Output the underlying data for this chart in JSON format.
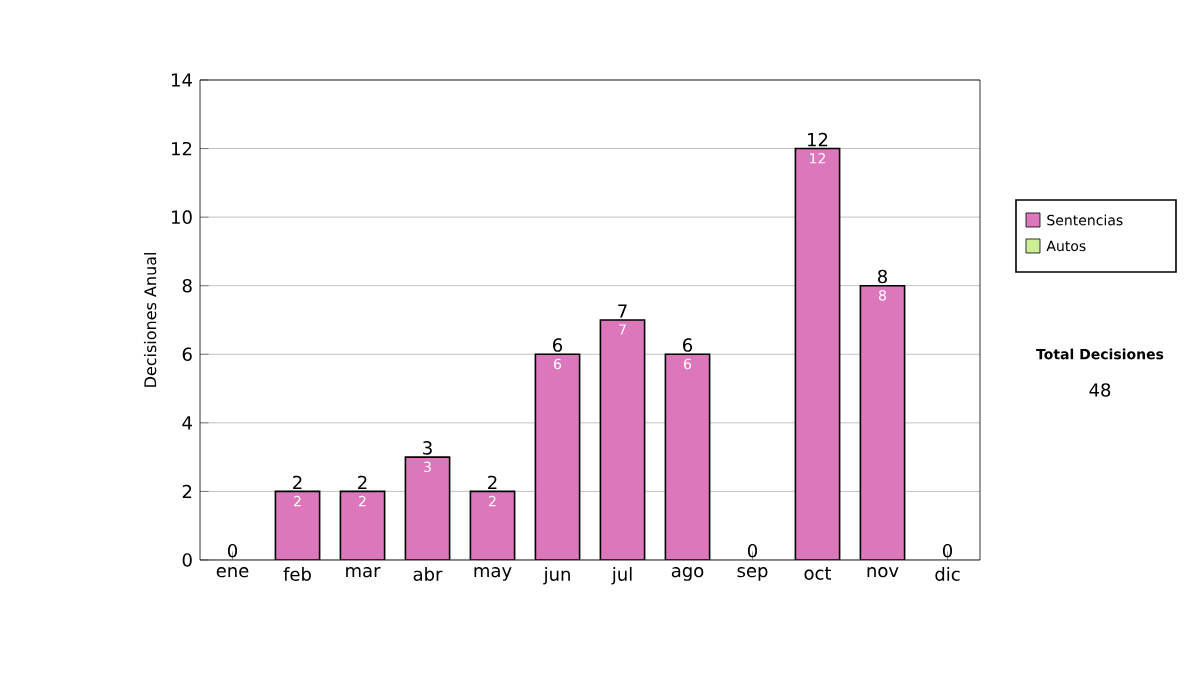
{
  "chart_data": {
    "type": "bar",
    "stacked": true,
    "ylabel": "Decisiones Anual",
    "categories": [
      "ene",
      "feb",
      "mar",
      "abr",
      "may",
      "jun",
      "jul",
      "ago",
      "sep",
      "oct",
      "nov",
      "dic"
    ],
    "series": [
      {
        "name": "Sentencias",
        "color": "#dd77bb",
        "values": [
          0,
          2,
          2,
          3,
          2,
          6,
          7,
          6,
          0,
          12,
          8,
          0
        ],
        "value_labels": [
          null,
          "2",
          "2",
          "3",
          "2",
          "6",
          "7",
          "6",
          null,
          "12",
          "8",
          null
        ]
      },
      {
        "name": "Autos",
        "color": "#ccee99",
        "values": [
          0,
          0,
          0,
          0,
          0,
          0,
          0,
          0,
          0,
          0,
          0,
          0
        ]
      }
    ],
    "totals": [
      "0",
      "2",
      "2",
      "3",
      "2",
      "6",
      "7",
      "6",
      "0",
      "12",
      "8",
      "0"
    ],
    "ylim": [
      0,
      14
    ],
    "yticks": [
      0,
      2,
      4,
      6,
      8,
      10,
      12,
      14
    ],
    "grid": "y",
    "legend": "right",
    "annotations": [
      "Total Decisiones",
      "48"
    ]
  }
}
